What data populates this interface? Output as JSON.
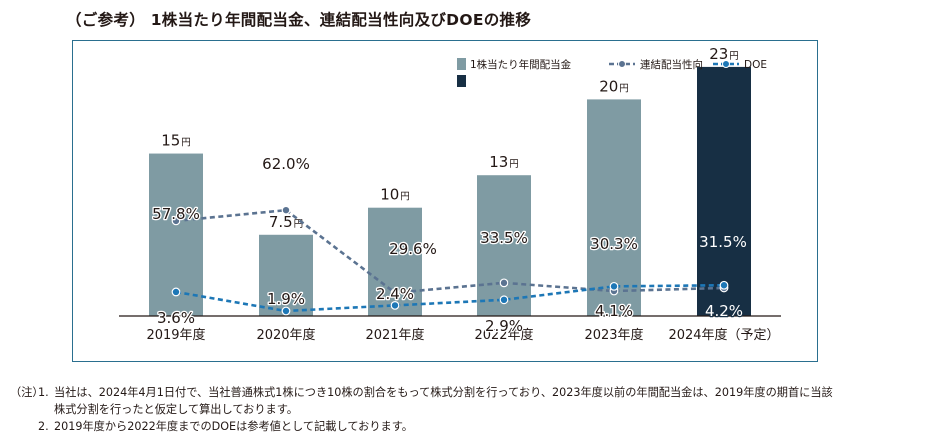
{
  "title": "（ご参考）  1株当たり年間配当金、連結配当性向及びDOEの推移",
  "chart_data": {
    "type": "bar",
    "categories": [
      "2019年度",
      "2020年度",
      "2021年度",
      "2022年度",
      "2023年度",
      "2024年度（予定）"
    ],
    "bar_series": {
      "name": "1株当たり年間配当金",
      "values": [
        15,
        7.5,
        10,
        13,
        20,
        23
      ],
      "labels": [
        "15",
        "7.5",
        "10",
        "13",
        "20",
        "23"
      ],
      "unit": "円",
      "colors": [
        "#7f9ba3",
        "#7f9ba3",
        "#7f9ba3",
        "#7f9ba3",
        "#7f9ba3",
        "#172f44"
      ]
    },
    "line_series": [
      {
        "name": "連結配当性向",
        "values": [
          57.8,
          62.0,
          29.6,
          33.5,
          30.3,
          31.5
        ],
        "labels": [
          "57.8%",
          "62.0%",
          "29.6%",
          "33.5%",
          "30.3%",
          "31.5%"
        ],
        "color": "#5b7391"
      },
      {
        "name": "DOE",
        "values": [
          3.6,
          1.9,
          2.4,
          2.9,
          4.1,
          4.2
        ],
        "labels": [
          "3.6%",
          "1.9%",
          "2.4%",
          "2.9%",
          "4.1%",
          "4.2%"
        ],
        "color": "#1d77b6"
      }
    ],
    "legend_position": "top-right",
    "grid": false
  },
  "notes": {
    "prefix": "（注）",
    "items": [
      {
        "num": "1.",
        "line1": "当社は、2024年4月1日付で、当社普通株式1株につき10株の割合をもって株式分割を行っており、2023年度以前の年間配当金は、2019年度の期首に当該",
        "line2": "株式分割を行ったと仮定して算出しております。"
      },
      {
        "num": "2.",
        "line1": "2019年度から2022年度までのDOEは参考値として記載しております。"
      }
    ]
  }
}
